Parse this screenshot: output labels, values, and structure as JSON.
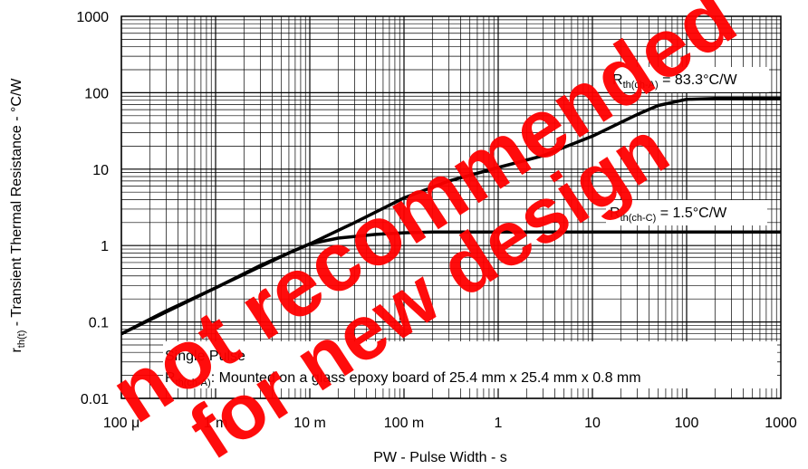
{
  "chart_data": {
    "type": "line",
    "xscale": "log",
    "yscale": "log",
    "xlim": [
      0.0001,
      1000
    ],
    "ylim": [
      0.01,
      1000
    ],
    "grid": "on (major and minor)",
    "xlabel": "PW - Pulse Width - s",
    "ylabel": {
      "prefix": "r",
      "sub": "th(t)",
      "rest": " - Transient Thermal Resistance - °C/W"
    },
    "x_ticks": [
      {
        "value": 0.0001,
        "label": "100 μ"
      },
      {
        "value": 0.001,
        "label": "1 m"
      },
      {
        "value": 0.01,
        "label": "10 m"
      },
      {
        "value": 0.1,
        "label": "100 m"
      },
      {
        "value": 1,
        "label": "1"
      },
      {
        "value": 10,
        "label": "10"
      },
      {
        "value": 100,
        "label": "100"
      },
      {
        "value": 1000,
        "label": "1000"
      }
    ],
    "y_ticks": [
      {
        "value": 0.01,
        "label": "0.01"
      },
      {
        "value": 0.1,
        "label": "0.1"
      },
      {
        "value": 1,
        "label": "1"
      },
      {
        "value": 10,
        "label": "10"
      },
      {
        "value": 100,
        "label": "100"
      },
      {
        "value": 1000,
        "label": "1000"
      }
    ],
    "series": [
      {
        "x": [
          0.0001,
          0.0003,
          0.001,
          0.003,
          0.006,
          0.01,
          0.03,
          0.1,
          0.3,
          1,
          3,
          10,
          30,
          50,
          100,
          200,
          1000
        ],
        "y": [
          0.07,
          0.14,
          0.28,
          0.55,
          0.8,
          1.05,
          2.0,
          4.2,
          7.0,
          10.5,
          15,
          27,
          52,
          68,
          82,
          84,
          84
        ]
      },
      {
        "x": [
          0.0001,
          0.001,
          0.006,
          0.01,
          0.02,
          0.05,
          0.1,
          0.2,
          1,
          10,
          100,
          1000
        ],
        "y": [
          0.07,
          0.28,
          0.8,
          1.05,
          1.25,
          1.4,
          1.47,
          1.5,
          1.5,
          1.5,
          1.5,
          1.5
        ]
      }
    ],
    "annotations": {
      "rth_ca": {
        "r": "R",
        "sub": "th(ch-A)",
        "rest": " = 83.3°C/W"
      },
      "rth_cc": {
        "r": "R",
        "sub": "th(ch-C)",
        "rest": " = 1.5°C/W"
      },
      "single_pulse": "Single Pulse",
      "mount": {
        "r": "R",
        "sub": "th(ch-A)",
        "rest": ": Mounted on a glass epoxy board of 25.4 mm x 25.4 mm x 0.8 mm"
      }
    },
    "line_color": "#000000",
    "grid_color": "#000000"
  },
  "watermark": {
    "line1": "not recommended",
    "line2": "for new design",
    "color": "#ff0000"
  }
}
